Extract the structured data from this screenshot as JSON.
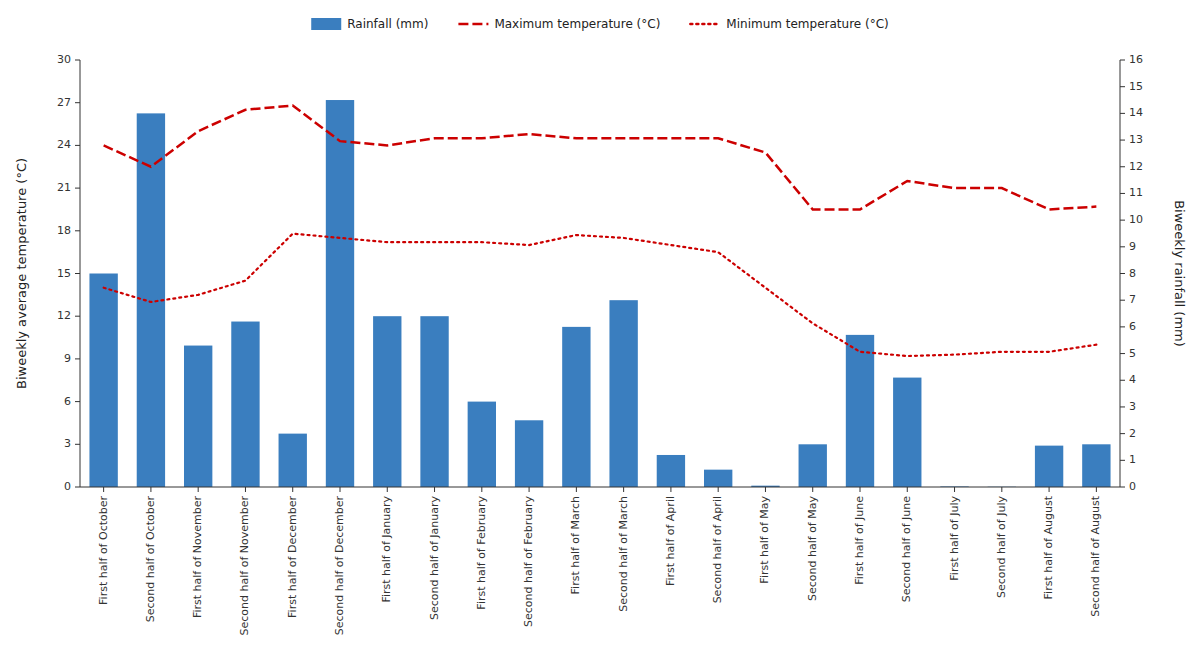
{
  "chart_data": {
    "type": "bar",
    "categories": [
      "First half of October",
      "Second half of October",
      "First half of November",
      "Second half of November",
      "First half of December",
      "Second half of December",
      "First half of January",
      "Second half of January",
      "First half of February",
      "Second half of February",
      "First half of March",
      "Second half of March",
      "First half of April",
      "Second half of April",
      "First half of May",
      "Second half of May",
      "First half of June",
      "Second half of June",
      "First half of July",
      "Second half of July",
      "First half of August",
      "Second half of August"
    ],
    "series": [
      {
        "name": "Rainfall (mm)",
        "type": "bar",
        "axis": "y2",
        "color": "#3a7ebf",
        "values": [
          8.0,
          14.0,
          5.3,
          6.2,
          2.0,
          14.5,
          6.4,
          6.4,
          3.2,
          2.5,
          6.0,
          7.0,
          1.2,
          0.65,
          0.05,
          1.6,
          5.7,
          4.1,
          0.02,
          0.01,
          1.55,
          1.6
        ]
      },
      {
        "name": "Maximum temperature (°C)",
        "type": "line",
        "color": "#cc0000",
        "line_style": "dashed",
        "values": [
          24.0,
          22.5,
          25.0,
          26.5,
          26.8,
          24.3,
          24.0,
          24.5,
          24.5,
          24.8,
          24.5,
          24.5,
          24.5,
          24.5,
          23.5,
          19.5,
          19.5,
          21.5,
          21.0,
          21.0,
          19.5,
          19.7
        ]
      },
      {
        "name": "Minimum temperature (°C)",
        "type": "line",
        "color": "#cc0000",
        "line_style": "dotted",
        "values": [
          14.0,
          13.0,
          13.5,
          14.5,
          17.8,
          17.5,
          17.2,
          17.2,
          17.2,
          17.0,
          17.7,
          17.5,
          17.0,
          16.5,
          14.0,
          11.5,
          9.5,
          9.2,
          9.3,
          9.5,
          9.5,
          10.0
        ]
      }
    ],
    "ylabel": "Biweekly average temperature (°C)",
    "y2label": "Biweekly rainfall  (mm)",
    "ylim": [
      0,
      30
    ],
    "yticks": [
      0,
      3,
      6,
      9,
      12,
      15,
      18,
      21,
      24,
      27,
      30
    ],
    "y2lim": [
      0,
      16
    ],
    "y2ticks": [
      0,
      1,
      2,
      3,
      4,
      5,
      6,
      7,
      8,
      9,
      10,
      11,
      12,
      13,
      14,
      15,
      16
    ],
    "legend": "top",
    "grid": false
  }
}
